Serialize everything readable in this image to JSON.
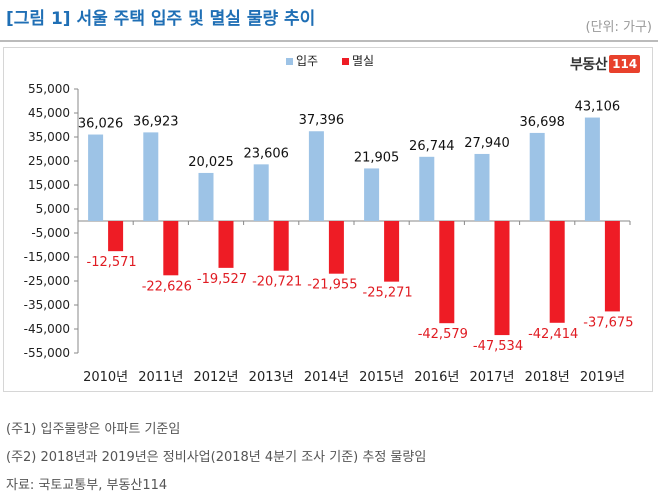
{
  "header": {
    "title": "[그림 1] 서울 주택 입주 및 멸실 물량 추이",
    "unit": "(단위: 가구)"
  },
  "logo": {
    "text": "부동산",
    "number": "114"
  },
  "footnotes": [
    "(주1) 입주물량은 아파트 기준임",
    "(주2) 2018년과 2019년은 정비사업(2018년 4분기 조사 기준) 추정 물량임",
    "자료: 국토교통부, 부동산114"
  ],
  "chart_data": {
    "type": "bar",
    "title": "",
    "categories": [
      "2010년",
      "2011년",
      "2012년",
      "2013년",
      "2014년",
      "2015년",
      "2016년",
      "2017년",
      "2018년",
      "2019년"
    ],
    "series": [
      {
        "name": "입주",
        "color": "#9dc3e6",
        "values": [
          36026,
          36923,
          20025,
          23606,
          37396,
          21905,
          26744,
          27940,
          36698,
          43106
        ],
        "labels": [
          "36,026",
          "36,923",
          "20,025",
          "23,606",
          "37,396",
          "21,905",
          "26,744",
          "27,940",
          "36,698",
          "43,106"
        ]
      },
      {
        "name": "멸실",
        "color": "#ee1c25",
        "values": [
          -12571,
          -22626,
          -19527,
          -20721,
          -21955,
          -25271,
          -42579,
          -47534,
          -42414,
          -37675
        ],
        "labels": [
          "-12,571",
          "-22,626",
          "-19,527",
          "-20,721",
          "-21,955",
          "-25,271",
          "-42,579",
          "-47,534",
          "-42,414",
          "-37,675"
        ]
      }
    ],
    "yticks": [
      55000,
      45000,
      35000,
      25000,
      15000,
      5000,
      -5000,
      -15000,
      -25000,
      -35000,
      -45000,
      -55000
    ],
    "ytick_labels": [
      "55,000",
      "45,000",
      "35,000",
      "25,000",
      "15,000",
      "5,000",
      "-5,000",
      "-15,000",
      "-25,000",
      "-35,000",
      "-45,000",
      "-55,000"
    ],
    "ylim": [
      -55000,
      55000
    ],
    "legend_position": "top-center",
    "grid": false
  }
}
